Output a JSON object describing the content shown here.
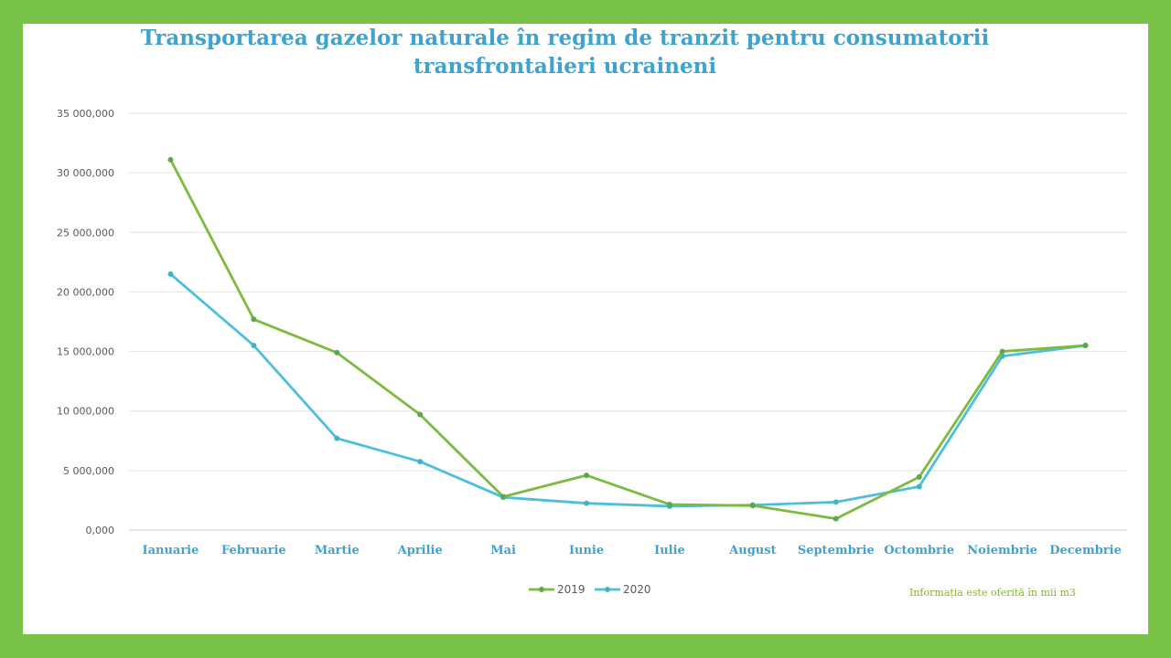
{
  "title_lines": [
    "Transportarea gazelor naturale în regim de tranzit pentru consumatorii",
    "transfrontalieri ucraineni"
  ],
  "note": "Informația este oferită în mii m3",
  "colors": {
    "background": "#77c146",
    "series_2019": "#7dba3f",
    "series_2020": "#4dbfdd",
    "title": "#3fa3cd"
  },
  "chart_data": {
    "type": "line",
    "title": "Transportarea gazelor naturale în regim de tranzit pentru consumatorii transfrontalieri ucraineni",
    "categories": [
      "Ianuarie",
      "Februarie",
      "Martie",
      "Aprilie",
      "Mai",
      "Iunie",
      "Iulie",
      "August",
      "Septembrie",
      "Octombrie",
      "Noiembrie",
      "Decembrie"
    ],
    "series": [
      {
        "name": "2019",
        "values": [
          31100000,
          17700000,
          14900000,
          9700000,
          2800000,
          4600000,
          2150000,
          2050000,
          950000,
          4450000,
          15000000,
          15500000
        ]
      },
      {
        "name": "2020",
        "values": [
          21500000,
          15500000,
          7700000,
          5750000,
          2750000,
          2250000,
          2000000,
          2100000,
          2350000,
          3650000,
          14600000,
          15500000
        ]
      }
    ],
    "yticks": [
      "0,000",
      "5 000,000",
      "10 000,000",
      "15 000,000",
      "20 000,000",
      "25 000,000",
      "30 000,000",
      "35 000,000"
    ],
    "ylim": [
      0,
      35000000
    ],
    "xlabel": "",
    "ylabel": "",
    "grid": true,
    "legend_position": "bottom"
  }
}
